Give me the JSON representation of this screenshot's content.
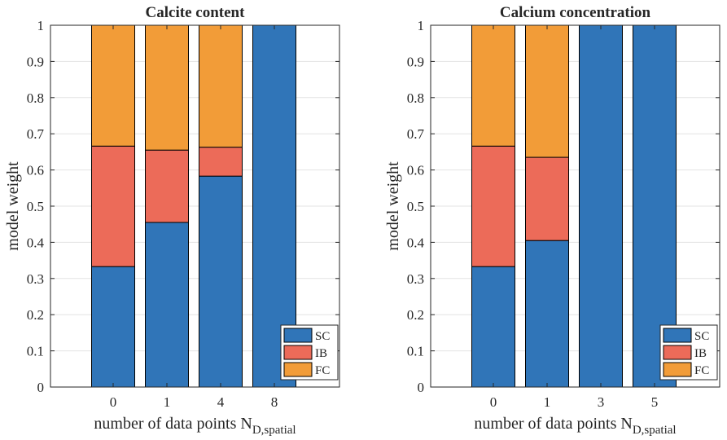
{
  "chart_data": [
    {
      "type": "bar",
      "stacked": true,
      "title": "Calcite content",
      "xlabel": "number of data points N",
      "xlabel_subscript": "D,spatial",
      "ylabel": "model weight",
      "ylim": [
        0,
        1
      ],
      "yticks": [
        "0",
        "0.1",
        "0.2",
        "0.3",
        "0.4",
        "0.5",
        "0.6",
        "0.7",
        "0.8",
        "0.9",
        "1"
      ],
      "categories": [
        "0",
        "1",
        "4",
        "8"
      ],
      "series": [
        {
          "name": "SC",
          "color": "#3075b8",
          "values": [
            0.333,
            0.455,
            0.583,
            1.0
          ]
        },
        {
          "name": "IB",
          "color": "#ec6b59",
          "values": [
            0.333,
            0.2,
            0.08,
            0.0
          ]
        },
        {
          "name": "FC",
          "color": "#f29c38",
          "values": [
            0.334,
            0.345,
            0.337,
            0.0
          ]
        }
      ],
      "legend": {
        "position": "bottom-right",
        "entries": [
          "SC",
          "IB",
          "FC"
        ]
      },
      "grid": "horizontal"
    },
    {
      "type": "bar",
      "stacked": true,
      "title": "Calcium concentration",
      "xlabel": "number of data points N",
      "xlabel_subscript": "D,spatial",
      "ylabel": "model weight",
      "ylim": [
        0,
        1
      ],
      "yticks": [
        "0",
        "0.1",
        "0.2",
        "0.3",
        "0.4",
        "0.5",
        "0.6",
        "0.7",
        "0.8",
        "0.9",
        "1"
      ],
      "categories": [
        "0",
        "1",
        "3",
        "5"
      ],
      "series": [
        {
          "name": "SC",
          "color": "#3075b8",
          "values": [
            0.333,
            0.405,
            1.0,
            1.0
          ]
        },
        {
          "name": "IB",
          "color": "#ec6b59",
          "values": [
            0.333,
            0.23,
            0.0,
            0.0
          ]
        },
        {
          "name": "FC",
          "color": "#f29c38",
          "values": [
            0.334,
            0.365,
            0.0,
            0.0
          ]
        }
      ],
      "legend": {
        "position": "bottom-right",
        "entries": [
          "SC",
          "IB",
          "FC"
        ]
      },
      "grid": "horizontal"
    }
  ]
}
